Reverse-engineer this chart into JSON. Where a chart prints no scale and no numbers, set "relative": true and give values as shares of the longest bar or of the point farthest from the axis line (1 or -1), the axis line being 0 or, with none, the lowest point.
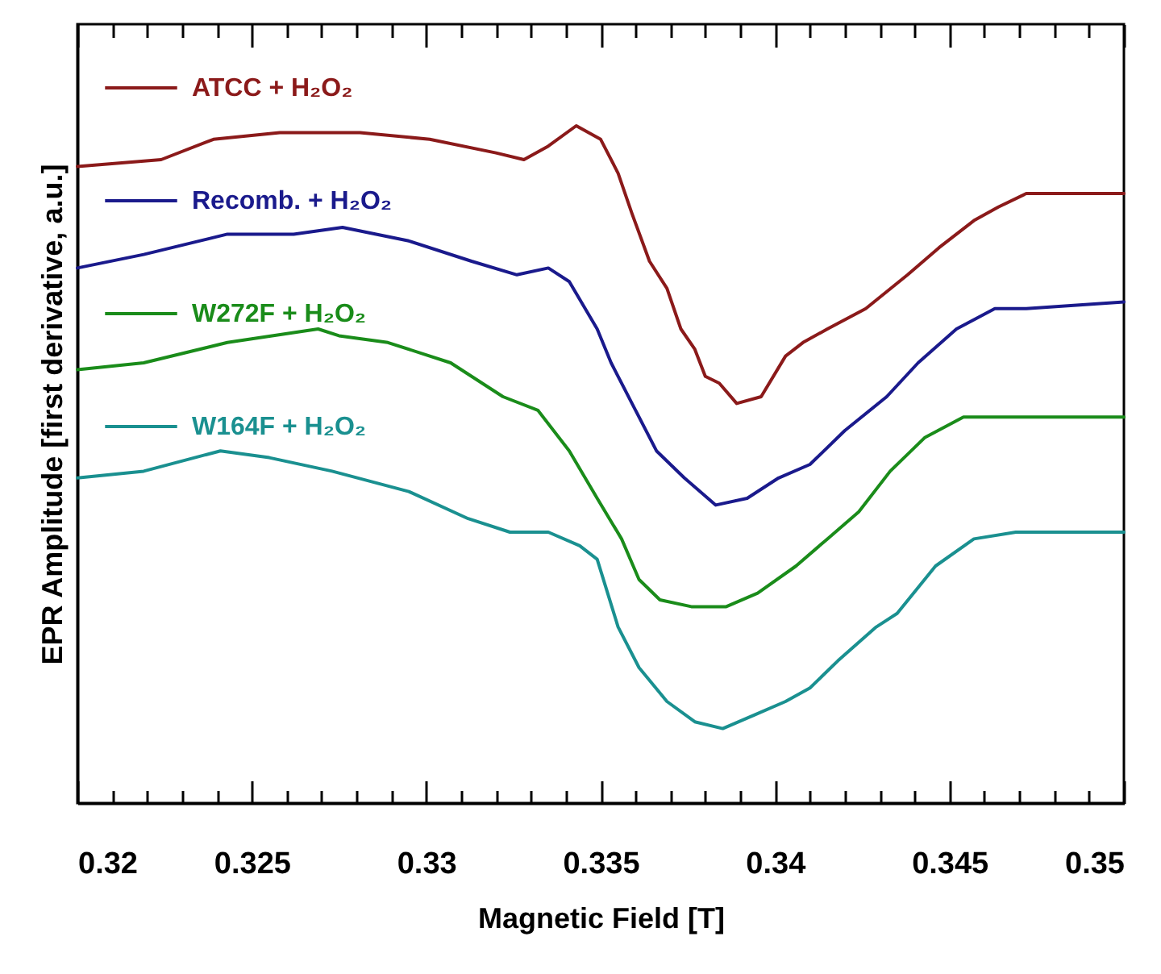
{
  "chart_data": {
    "type": "line",
    "relative": true,
    "xlabel": "Magnetic Field [T]",
    "ylabel": "EPR Amplitude [first derivative, a.u.]",
    "xlim": [
      0.32,
      0.35
    ],
    "xticks": [
      0.32,
      {
        "value": 0.321,
        "label": null
      },
      {
        "value": 0.322,
        "label": null
      },
      {
        "value": 0.323,
        "label": null
      },
      {
        "value": 0.324,
        "label": null
      },
      0.325,
      {
        "value": 0.326,
        "label": null
      },
      {
        "value": 0.327,
        "label": null
      },
      {
        "value": 0.328,
        "label": null
      },
      {
        "value": 0.329,
        "label": null
      },
      0.33,
      {
        "value": 0.331,
        "label": null
      },
      {
        "value": 0.332,
        "label": null
      },
      {
        "value": 0.333,
        "label": null
      },
      {
        "value": 0.334,
        "label": null
      },
      0.335,
      {
        "value": 0.336,
        "label": null
      },
      {
        "value": 0.337,
        "label": null
      },
      {
        "value": 0.338,
        "label": null
      },
      {
        "value": 0.339,
        "label": null
      },
      0.34,
      {
        "value": 0.341,
        "label": null
      },
      {
        "value": 0.342,
        "label": null
      },
      {
        "value": 0.343,
        "label": null
      },
      {
        "value": 0.344,
        "label": null
      },
      0.345,
      {
        "value": 0.346,
        "label": null
      },
      {
        "value": 0.347,
        "label": null
      },
      {
        "value": 0.348,
        "label": null
      },
      {
        "value": 0.349,
        "label": null
      },
      0.35
    ],
    "legend": "top left",
    "line_style": "solid",
    "series": [
      {
        "name": "ATCC + H₂O₂",
        "color": "#8b1a1a",
        "x": [
          0.32,
          0.3224,
          0.3239,
          0.3258,
          0.3281,
          0.3301,
          0.332,
          0.3328,
          0.3335,
          0.3343,
          0.335,
          0.3355,
          0.3359,
          0.3364,
          0.3369,
          0.3373,
          0.3377,
          0.338,
          0.3384,
          0.3389,
          0.3396,
          0.3403,
          0.3408,
          0.3415,
          0.3426,
          0.3438,
          0.3447,
          0.3457,
          0.3464,
          0.3472,
          0.3484,
          0.35
        ],
        "values": [
          0.94,
          0.95,
          0.98,
          0.99,
          0.99,
          0.98,
          0.96,
          0.95,
          0.97,
          1,
          0.98,
          0.93,
          0.87,
          0.8,
          0.76,
          0.7,
          0.67,
          0.63,
          0.62,
          0.59,
          0.6,
          0.66,
          0.68,
          0.7,
          0.73,
          0.78,
          0.82,
          0.86,
          0.88,
          0.9,
          0.9,
          0.9
        ]
      },
      {
        "name": "Recomb. + H₂O₂",
        "color": "#1a1a8c",
        "x": [
          0.32,
          0.3219,
          0.3243,
          0.3262,
          0.3276,
          0.3295,
          0.3313,
          0.3326,
          0.3335,
          0.3341,
          0.3349,
          0.3353,
          0.336,
          0.3366,
          0.3374,
          0.3383,
          0.3392,
          0.3401,
          0.341,
          0.342,
          0.3432,
          0.3441,
          0.3452,
          0.3463,
          0.3472,
          0.35
        ],
        "values": [
          0.79,
          0.81,
          0.84,
          0.84,
          0.85,
          0.83,
          0.8,
          0.78,
          0.79,
          0.77,
          0.7,
          0.65,
          0.58,
          0.52,
          0.48,
          0.44,
          0.45,
          0.48,
          0.5,
          0.55,
          0.6,
          0.65,
          0.7,
          0.73,
          0.73,
          0.74
        ]
      },
      {
        "name": "W272F + H₂O₂",
        "color": "#1a8c1a",
        "x": [
          0.32,
          0.3219,
          0.3243,
          0.3269,
          0.3275,
          0.3289,
          0.3307,
          0.3322,
          0.3332,
          0.3341,
          0.3349,
          0.3356,
          0.3361,
          0.3367,
          0.3376,
          0.3386,
          0.3395,
          0.3406,
          0.3415,
          0.3424,
          0.3433,
          0.3443,
          0.3454,
          0.3466,
          0.35
        ],
        "values": [
          0.64,
          0.65,
          0.68,
          0.7,
          0.69,
          0.68,
          0.65,
          0.6,
          0.58,
          0.52,
          0.45,
          0.39,
          0.33,
          0.3,
          0.29,
          0.29,
          0.31,
          0.35,
          0.39,
          0.43,
          0.49,
          0.54,
          0.57,
          0.57,
          0.57
        ]
      },
      {
        "name": "W164F + H₂O₂",
        "color": "#1a9090",
        "x": [
          0.32,
          0.3219,
          0.3241,
          0.3255,
          0.3273,
          0.3295,
          0.3312,
          0.3324,
          0.3335,
          0.3344,
          0.3349,
          0.3355,
          0.3361,
          0.3369,
          0.3377,
          0.3385,
          0.3394,
          0.3403,
          0.341,
          0.3418,
          0.3429,
          0.3435,
          0.3446,
          0.3457,
          0.3469,
          0.35
        ],
        "values": [
          0.48,
          0.49,
          0.52,
          0.51,
          0.49,
          0.46,
          0.42,
          0.4,
          0.4,
          0.38,
          0.36,
          0.26,
          0.2,
          0.15,
          0.12,
          0.11,
          0.13,
          0.15,
          0.17,
          0.21,
          0.26,
          0.28,
          0.35,
          0.39,
          0.4,
          0.4
        ]
      }
    ]
  }
}
